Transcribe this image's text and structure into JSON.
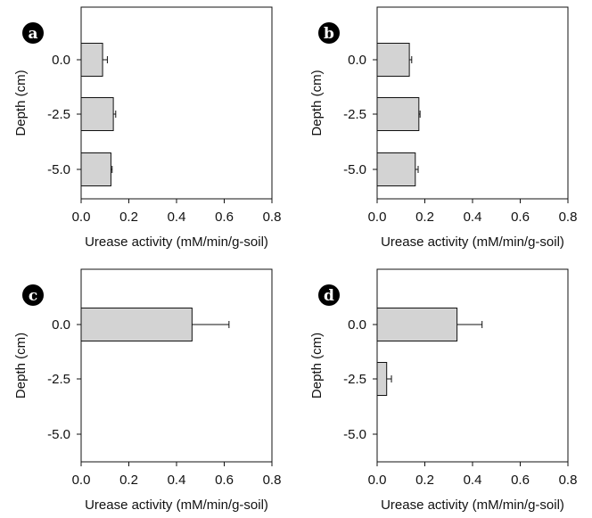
{
  "chart_data": [
    {
      "type": "bar",
      "orientation": "horizontal",
      "panel_label": "a",
      "categories": [
        "0.0",
        "-2.5",
        "-5.0"
      ],
      "values": [
        0.09,
        0.135,
        0.125
      ],
      "errors": [
        0.02,
        0.01,
        0.005
      ],
      "xlabel": "Urease activity (mM/min/g-soil)",
      "ylabel": "Depth (cm)",
      "xlim": [
        0,
        0.8
      ],
      "xticks": [
        "0.0",
        "0.2",
        "0.4",
        "0.6",
        "0.8"
      ],
      "grid": false
    },
    {
      "type": "bar",
      "orientation": "horizontal",
      "panel_label": "b",
      "categories": [
        "0.0",
        "-2.5",
        "-5.0"
      ],
      "values": [
        0.135,
        0.175,
        0.16
      ],
      "errors": [
        0.01,
        0.005,
        0.012
      ],
      "xlabel": "Urease activity (mM/min/g-soil)",
      "ylabel": "Depth (cm)",
      "xlim": [
        0,
        0.8
      ],
      "xticks": [
        "0.0",
        "0.2",
        "0.4",
        "0.6",
        "0.8"
      ],
      "grid": false
    },
    {
      "type": "bar",
      "orientation": "horizontal",
      "panel_label": "c",
      "categories": [
        "0.0",
        "-2.5",
        "-5.0"
      ],
      "values": [
        0.465,
        null,
        null
      ],
      "errors": [
        0.155,
        null,
        null
      ],
      "xlabel": "Urease activity (mM/min/g-soil)",
      "ylabel": "Depth (cm)",
      "xlim": [
        0,
        0.8
      ],
      "xticks": [
        "0.0",
        "0.2",
        "0.4",
        "0.6",
        "0.8"
      ],
      "grid": false
    },
    {
      "type": "bar",
      "orientation": "horizontal",
      "panel_label": "d",
      "categories": [
        "0.0",
        "-2.5",
        "-5.0"
      ],
      "values": [
        0.335,
        0.04,
        null
      ],
      "errors": [
        0.105,
        0.02,
        null
      ],
      "xlabel": "Urease activity (mM/min/g-soil)",
      "ylabel": "Depth (cm)",
      "xlim": [
        0,
        0.8
      ],
      "xticks": [
        "0.0",
        "0.2",
        "0.4",
        "0.6",
        "0.8"
      ],
      "grid": false
    }
  ],
  "colors": {
    "bar_fill": "#d3d3d3",
    "bar_stroke": "#111111",
    "axis": "#111111",
    "label_badge": "#000000",
    "label_text": "#ffffff"
  }
}
